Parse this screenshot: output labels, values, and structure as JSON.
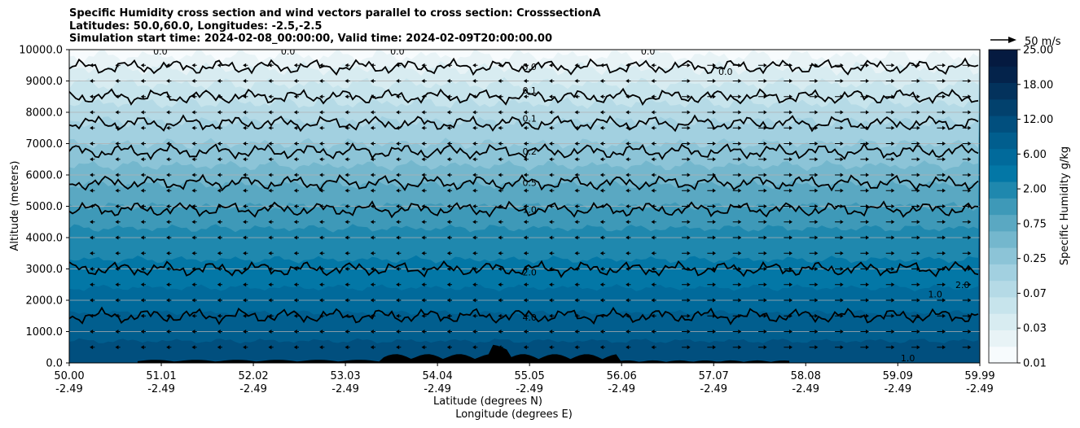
{
  "title_lines": [
    "Specific Humidity cross section and wind vectors parallel to cross section: CrosssectionA",
    "Latitudes: 50.0,60.0, Longitudes: -2.5,-2.5",
    "Simulation start time: 2024-02-08_00:00:00, Valid time: 2024-02-09T20:00:00.00"
  ],
  "chart_data": {
    "type": "contour",
    "title": "Specific Humidity cross section and wind vectors parallel to cross section: CrosssectionA",
    "xlabel": "Latitude (degrees N)",
    "xlabel2": "Longitude (degrees E)",
    "ylabel": "Altitude (meters)",
    "ylim": [
      0,
      10000
    ],
    "xlim": [
      50.0,
      59.99
    ],
    "x_ticks": [
      {
        "lat": "50.00",
        "lon": "-2.49",
        "value": 50.0
      },
      {
        "lat": "51.01",
        "lon": "-2.49",
        "value": 51.01
      },
      {
        "lat": "52.02",
        "lon": "-2.49",
        "value": 52.02
      },
      {
        "lat": "53.03",
        "lon": "-2.49",
        "value": 53.03
      },
      {
        "lat": "54.04",
        "lon": "-2.49",
        "value": 54.04
      },
      {
        "lat": "55.05",
        "lon": "-2.49",
        "value": 55.05
      },
      {
        "lat": "56.06",
        "lon": "-2.49",
        "value": 56.06
      },
      {
        "lat": "57.07",
        "lon": "-2.49",
        "value": 57.07
      },
      {
        "lat": "58.08",
        "lon": "-2.49",
        "value": 58.08
      },
      {
        "lat": "59.09",
        "lon": "-2.49",
        "value": 59.09
      },
      {
        "lat": "59.99",
        "lon": "-2.49",
        "value": 59.99
      }
    ],
    "y_ticks": [
      "0.0",
      "1000.0",
      "2000.0",
      "3000.0",
      "4000.0",
      "5000.0",
      "6000.0",
      "7000.0",
      "8000.0",
      "9000.0",
      "10000.0"
    ],
    "grid": "horizontal",
    "colorbar": {
      "label": "Specific Humidity g/kg",
      "tick_labels": [
        "0.01",
        "0.03",
        "0.07",
        "0.25",
        "0.75",
        "2.00",
        "6.00",
        "12.00",
        "18.00",
        "25.00"
      ],
      "colors": [
        "#f7fbfd",
        "#e8f3f6",
        "#d8ecf1",
        "#c7e4ec",
        "#b5dae6",
        "#a2d0e0",
        "#8cc4d7",
        "#74b7cd",
        "#5aa8c2",
        "#3e99b8",
        "#1f88ae",
        "#0377a6",
        "#016a9b",
        "#015e8e",
        "#014f7e",
        "#02416d",
        "#03325c",
        "#04234b",
        "#051a40"
      ]
    },
    "contour_levels": [
      {
        "label": "0.0",
        "altitude_m": 9450
      },
      {
        "label": "0.1",
        "altitude_m": 8500
      },
      {
        "label": "0.1",
        "altitude_m": 7650
      },
      {
        "label": "0.2",
        "altitude_m": 6750
      },
      {
        "label": "0.5",
        "altitude_m": 5750
      },
      {
        "label": "1.0",
        "altitude_m": 4900
      },
      {
        "label": "2.0",
        "altitude_m": 3000
      },
      {
        "label": "4.0",
        "altitude_m": 1500
      }
    ],
    "contour_labels": [
      "0.0",
      "0.0",
      "0.0",
      "0.0",
      "0.0",
      "0.0",
      "0.1",
      "0.1",
      "0.2",
      "0.5",
      "1.0",
      "2.0",
      "4.0",
      "1.0",
      "2.0",
      "1.0"
    ],
    "wind_reference": {
      "label": "50 m/s",
      "speed_ms": 50
    },
    "wind_field": {
      "altitudes_m": [
        500,
        1000,
        1500,
        2000,
        2500,
        3000,
        3500,
        4000,
        4500,
        5000,
        5500,
        6000,
        6500,
        7000,
        7500,
        8000,
        8500,
        9000,
        9500
      ],
      "regimes": [
        {
          "from_lat": 50.0,
          "to_lat": 56.6,
          "direction": "southward",
          "speed_ms": 4
        },
        {
          "from_lat": 56.6,
          "to_lat": 59.99,
          "direction": "northward",
          "speed_ms": 12
        }
      ]
    }
  }
}
